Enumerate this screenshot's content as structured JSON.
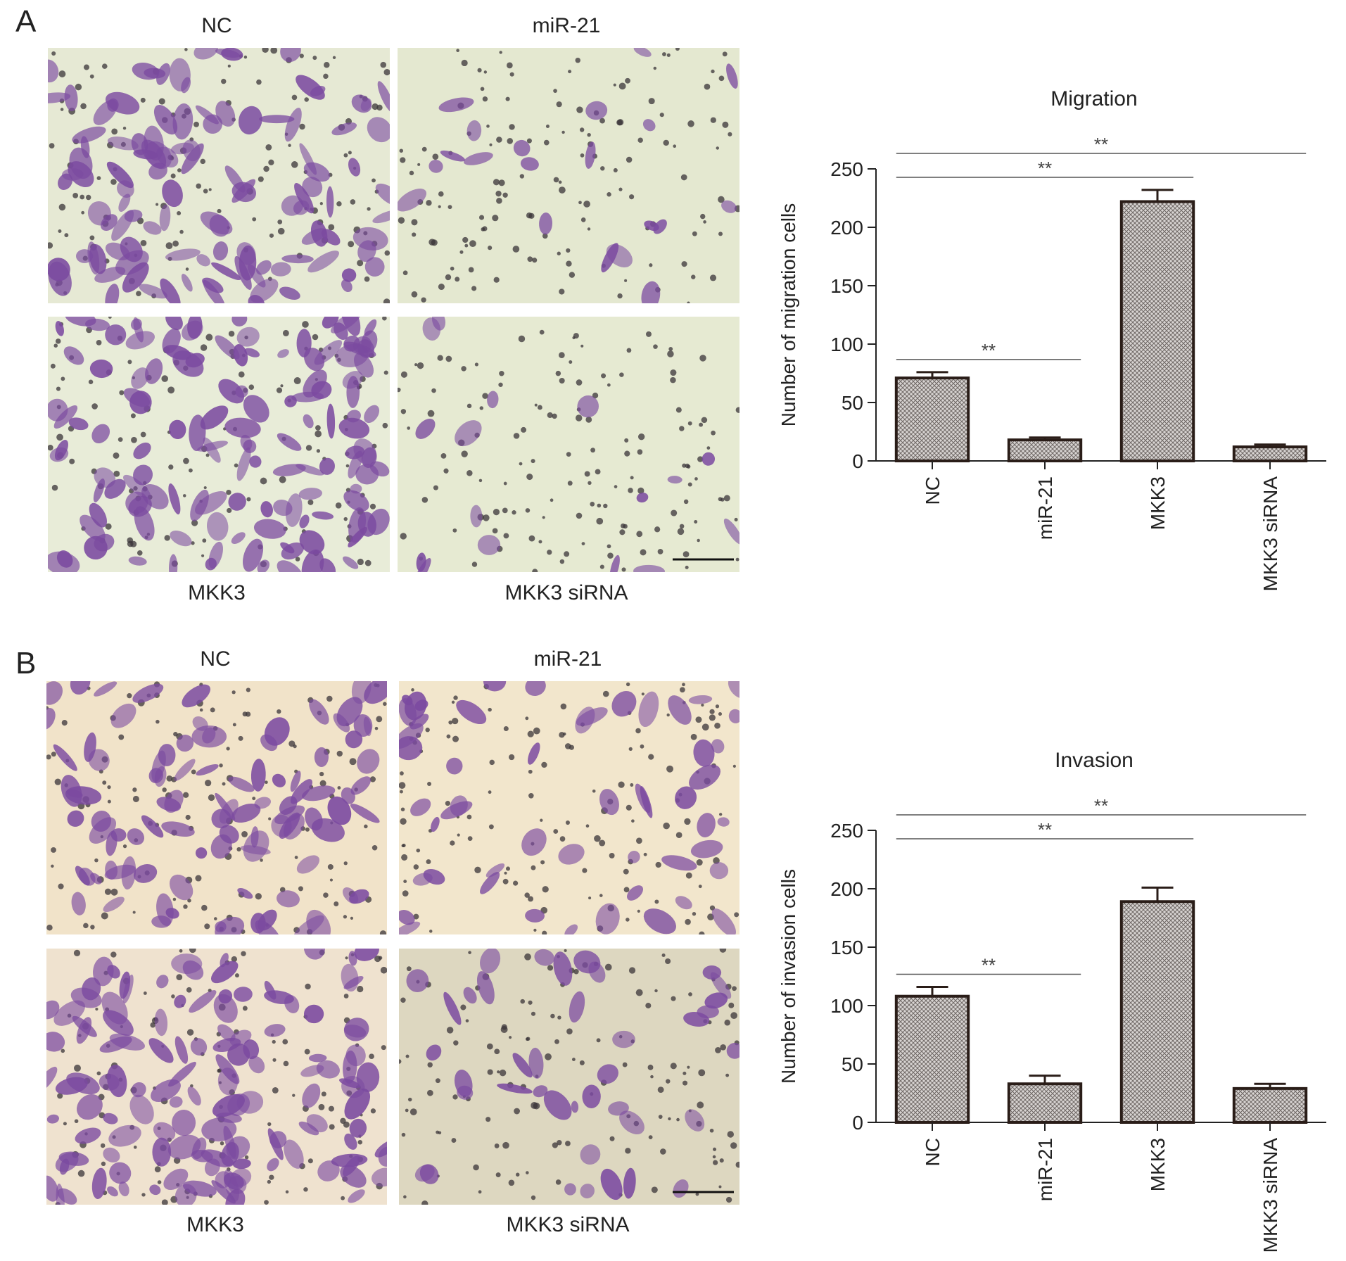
{
  "panels": [
    {
      "letter": "A",
      "images": [
        {
          "label": "NC",
          "tint": "#e6e9d4",
          "density": 0.85,
          "scale_bar": false
        },
        {
          "label": "miR-21",
          "tint": "#e4e8d0",
          "density": 0.15,
          "scale_bar": false
        },
        {
          "label": "MKK3",
          "tint": "#e8ecd8",
          "density": 1.0,
          "scale_bar": false
        },
        {
          "label": "MKK3 siRNA",
          "tint": "#e6ead2",
          "density": 0.12,
          "scale_bar": true
        }
      ]
    },
    {
      "letter": "B",
      "images": [
        {
          "label": "NC",
          "tint": "#f1e3c9",
          "density": 0.75,
          "scale_bar": false
        },
        {
          "label": "miR-21",
          "tint": "#f2e6cc",
          "density": 0.4,
          "scale_bar": false
        },
        {
          "label": "MKK3",
          "tint": "#efe2cf",
          "density": 1.0,
          "scale_bar": false
        },
        {
          "label": "MKK3 siRNA",
          "tint": "#ddd7c0",
          "density": 0.3,
          "scale_bar": true
        }
      ]
    }
  ],
  "colors": {
    "bar_stroke": "#2a1d18",
    "bar_fill": "#b8b2ae",
    "cell": "#7b4aa0",
    "debris": "#3a3438"
  },
  "chart_data": [
    {
      "type": "bar",
      "title": "Migration",
      "xlabel": "",
      "ylabel": "Number of migration cells",
      "categories": [
        "NC",
        "miR-21",
        "MKK3",
        "MKK3 siRNA"
      ],
      "values": [
        71,
        18,
        222,
        12
      ],
      "errors": [
        5,
        2,
        10,
        2
      ],
      "ylim": [
        0,
        250
      ],
      "yticks": [
        0,
        50,
        100,
        150,
        200,
        250
      ],
      "significance": [
        {
          "from": "NC",
          "to": "miR-21",
          "label": "**"
        },
        {
          "from": "NC",
          "to": "MKK3",
          "label": "**"
        },
        {
          "from": "NC",
          "to": "MKK3 siRNA",
          "label": "**"
        }
      ]
    },
    {
      "type": "bar",
      "title": "Invasion",
      "xlabel": "",
      "ylabel": "Number of invasion cells",
      "categories": [
        "NC",
        "miR-21",
        "MKK3",
        "MKK3 siRNA"
      ],
      "values": [
        108,
        33,
        189,
        29
      ],
      "errors": [
        8,
        7,
        12,
        4
      ],
      "ylim": [
        0,
        250
      ],
      "yticks": [
        0,
        50,
        100,
        150,
        200,
        250
      ],
      "significance": [
        {
          "from": "NC",
          "to": "miR-21",
          "label": "**"
        },
        {
          "from": "NC",
          "to": "MKK3",
          "label": "**"
        },
        {
          "from": "NC",
          "to": "MKK3 siRNA",
          "label": "**"
        }
      ]
    }
  ]
}
